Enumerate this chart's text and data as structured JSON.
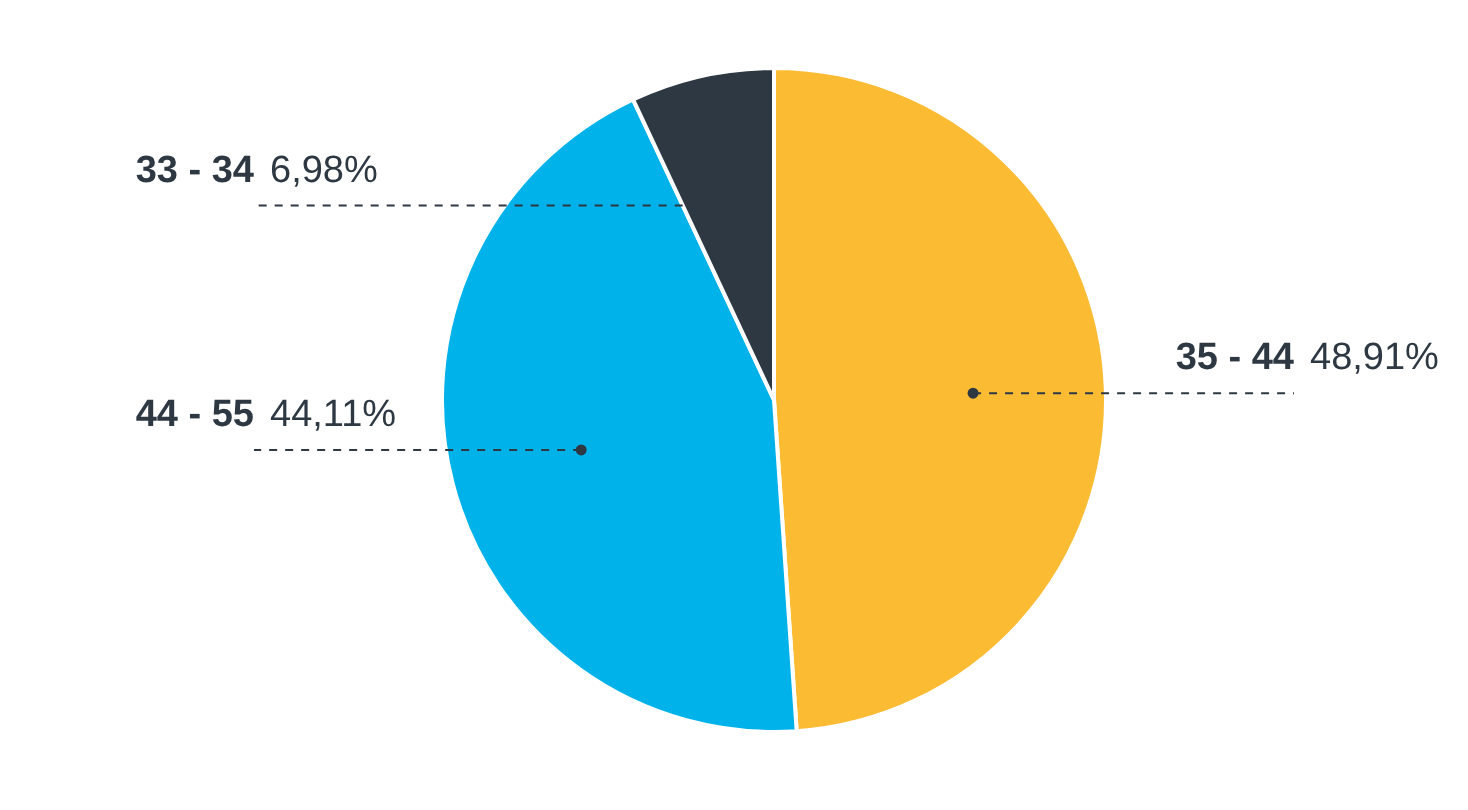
{
  "chart_data": {
    "type": "pie",
    "categories": [
      "35 - 44",
      "44 - 55",
      "33 - 34"
    ],
    "values": [
      48.91,
      44.11,
      6.98
    ],
    "colors": [
      "#fbbc33",
      "#00b2ea",
      "#2d3843"
    ],
    "value_labels": [
      "48,91%",
      "44,11%",
      "6,98%"
    ]
  }
}
